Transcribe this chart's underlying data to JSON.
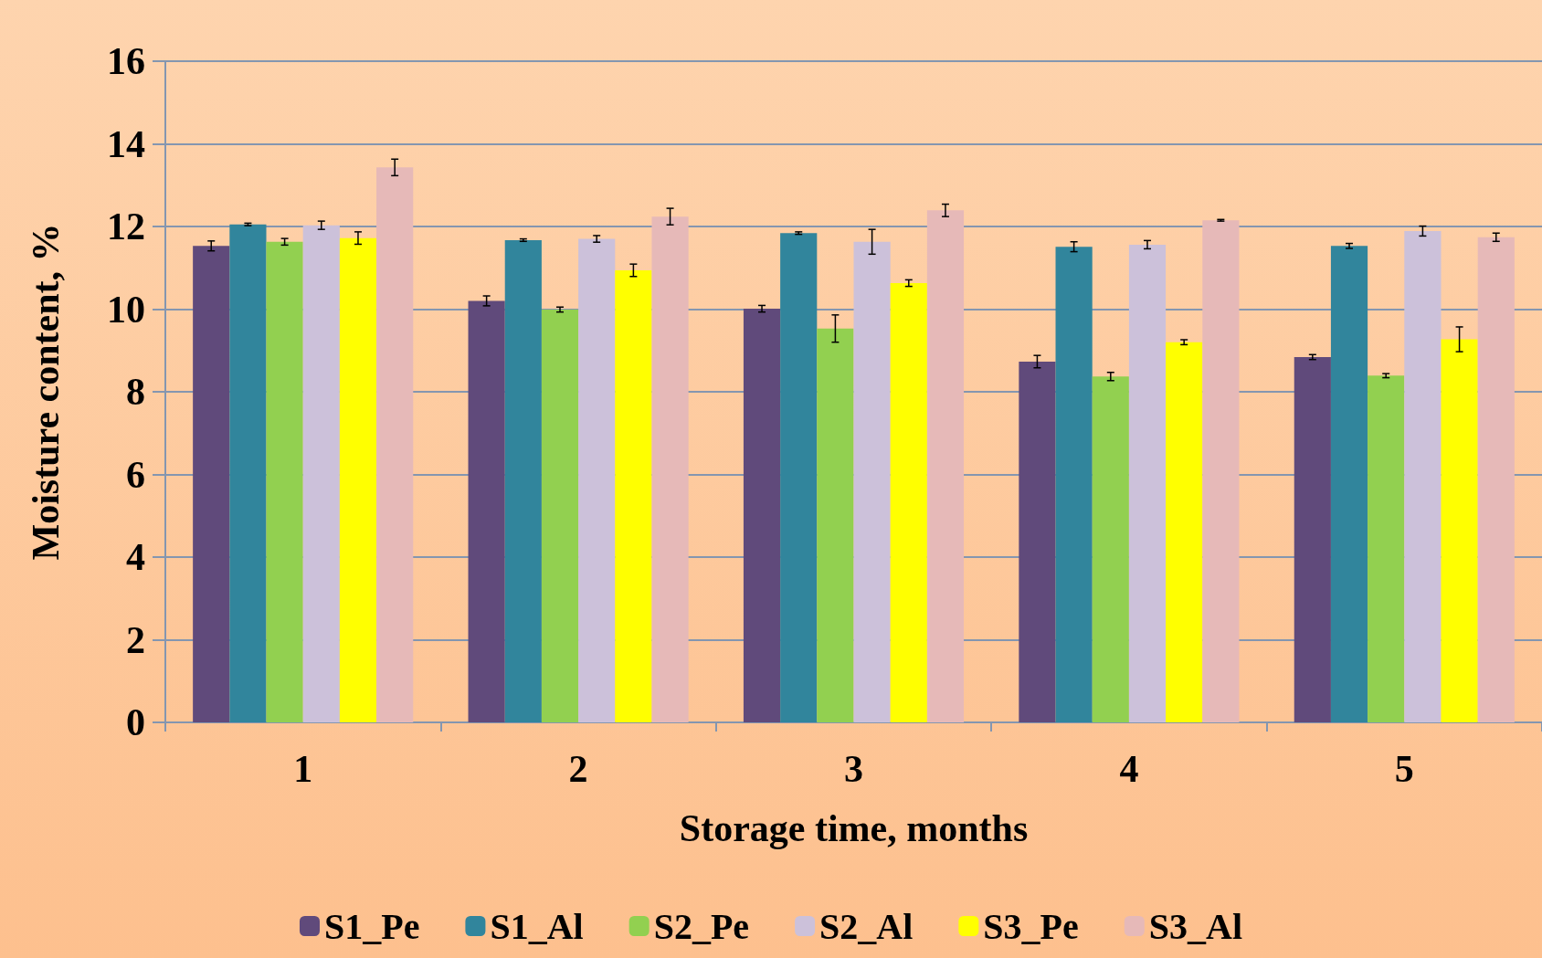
{
  "chart_data": {
    "type": "bar",
    "xlabel": "Storage time, months",
    "ylabel": "Moisture content, %",
    "categories": [
      "1",
      "2",
      "3",
      "4",
      "5"
    ],
    "ylim": [
      0,
      16
    ],
    "yticks": [
      0,
      2,
      4,
      6,
      8,
      10,
      12,
      14,
      16
    ],
    "grid": "y",
    "legend": "bottom",
    "series": [
      {
        "name": "S1_Pe",
        "color": "#604a7b",
        "values": [
          11.53,
          10.2,
          10.01,
          8.73,
          8.84
        ],
        "errors": [
          0.12,
          0.12,
          0.08,
          0.15,
          0.06
        ]
      },
      {
        "name": "S1_Al",
        "color": "#31859c",
        "values": [
          12.05,
          11.67,
          11.84,
          11.51,
          11.53
        ],
        "errors": [
          0.03,
          0.03,
          0.03,
          0.12,
          0.06
        ]
      },
      {
        "name": "S2_Pe",
        "color": "#92d050",
        "values": [
          11.63,
          9.99,
          9.53,
          8.37,
          8.39
        ],
        "errors": [
          0.08,
          0.06,
          0.33,
          0.1,
          0.05
        ]
      },
      {
        "name": "S2_Al",
        "color": "#ccc1da",
        "values": [
          12.03,
          11.7,
          11.63,
          11.56,
          11.89
        ],
        "errors": [
          0.1,
          0.08,
          0.3,
          0.1,
          0.12
        ]
      },
      {
        "name": "S3_Pe",
        "color": "#ffff00",
        "values": [
          11.72,
          10.94,
          10.63,
          9.2,
          9.27
        ],
        "errors": [
          0.15,
          0.15,
          0.08,
          0.06,
          0.3
        ]
      },
      {
        "name": "S3_Al",
        "color": "#e6b9b8",
        "values": [
          13.43,
          12.24,
          12.39,
          12.15,
          11.74
        ],
        "errors": [
          0.2,
          0.2,
          0.15,
          0.02,
          0.1
        ]
      }
    ]
  }
}
